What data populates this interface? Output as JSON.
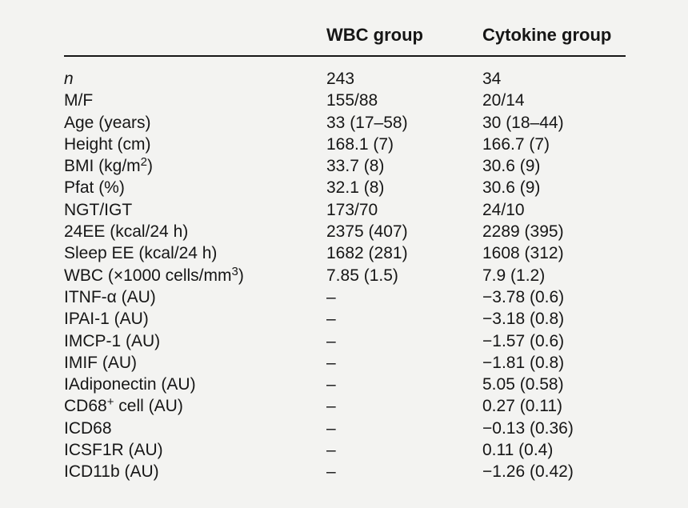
{
  "page": {
    "background_color": "#f3f3f1",
    "text_color": "#161616",
    "rule_color": "#161616"
  },
  "table": {
    "columns": [
      "",
      "WBC group",
      "Cytokine group"
    ],
    "rows": [
      {
        "label": "n",
        "italic": true,
        "wbc": "243",
        "cytokine": "34"
      },
      {
        "label": "M/F",
        "italic": false,
        "wbc": "155/88",
        "cytokine": "20/14"
      },
      {
        "label": "Age (years)",
        "italic": false,
        "wbc": "33 (17–58)",
        "cytokine": "30 (18–44)"
      },
      {
        "label": "Height (cm)",
        "italic": false,
        "wbc": "168.1 (7)",
        "cytokine": "166.7 (7)"
      },
      {
        "label": "BMI (kg/m{2})",
        "italic": false,
        "wbc": "33.7 (8)",
        "cytokine": "30.6 (9)"
      },
      {
        "label": "Pfat (%)",
        "italic": false,
        "wbc": "32.1 (8)",
        "cytokine": "30.6 (9)"
      },
      {
        "label": "NGT/IGT",
        "italic": false,
        "wbc": "173/70",
        "cytokine": "24/10"
      },
      {
        "label": "24EE (kcal/24 h)",
        "italic": false,
        "wbc": "2375 (407)",
        "cytokine": "2289 (395)"
      },
      {
        "label": "Sleep EE (kcal/24 h)",
        "italic": false,
        "wbc": "1682 (281)",
        "cytokine": "1608 (312)"
      },
      {
        "label": "WBC (×1000 cells/mm{3})",
        "italic": false,
        "wbc": "7.85 (1.5)",
        "cytokine": "7.9 (1.2)"
      },
      {
        "label": "ITNF-α (AU)",
        "italic": false,
        "wbc": "–",
        "cytokine": "−3.78 (0.6)"
      },
      {
        "label": "IPAI-1 (AU)",
        "italic": false,
        "wbc": "–",
        "cytokine": "−3.18 (0.8)"
      },
      {
        "label": "IMCP-1 (AU)",
        "italic": false,
        "wbc": "–",
        "cytokine": "−1.57 (0.6)"
      },
      {
        "label": "IMIF (AU)",
        "italic": false,
        "wbc": "–",
        "cytokine": "−1.81 (0.8)"
      },
      {
        "label": "IAdiponectin (AU)",
        "italic": false,
        "wbc": "–",
        "cytokine": "5.05 (0.58)"
      },
      {
        "label": "CD68{+} cell (AU)",
        "italic": false,
        "wbc": "–",
        "cytokine": "0.27 (0.11)"
      },
      {
        "label": "ICD68",
        "italic": false,
        "wbc": "–",
        "cytokine": "−0.13 (0.36)"
      },
      {
        "label": "ICSF1R (AU)",
        "italic": false,
        "wbc": "–",
        "cytokine": "0.11 (0.4)"
      },
      {
        "label": "ICD11b (AU)",
        "italic": false,
        "wbc": "–",
        "cytokine": "−1.26 (0.42)"
      }
    ]
  }
}
